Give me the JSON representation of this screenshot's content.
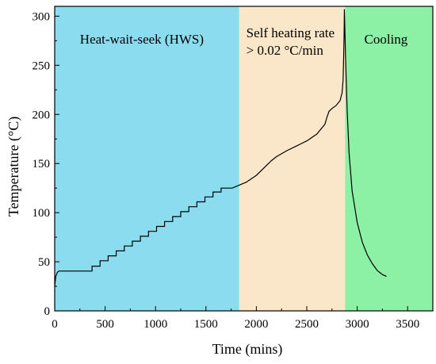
{
  "chart_data": {
    "type": "line",
    "xlabel": "Time (mins)",
    "ylabel": "Temperature (°C)",
    "xlim": [
      0,
      3750
    ],
    "ylim": [
      0,
      310
    ],
    "xticks": [
      "0",
      "500",
      "1000",
      "1500",
      "2000",
      "2500",
      "3000",
      "3500"
    ],
    "xtick_values": [
      0,
      500,
      1000,
      1500,
      2000,
      2500,
      3000,
      3500
    ],
    "yticks": [
      "0",
      "50",
      "100",
      "150",
      "200",
      "250",
      "300"
    ],
    "ytick_values": [
      0,
      50,
      100,
      150,
      200,
      250,
      300
    ],
    "grid": false,
    "regions": [
      {
        "label": "Heat-wait-seek (HWS)",
        "label_line2": "",
        "x_start": 0,
        "x_end": 1830,
        "color": "#8cdcf0"
      },
      {
        "label": "Self heating rate",
        "label_line2": "> 0.02 °C/min",
        "x_start": 1830,
        "x_end": 2880,
        "color": "#fae6c8"
      },
      {
        "label": "Cooling",
        "label_line2": "",
        "x_start": 2880,
        "x_end": 3750,
        "color": "#8cf0a5"
      }
    ],
    "series": [
      {
        "color": "#000000",
        "step_segments": [
          {
            "x_start": 40,
            "x_end": 370,
            "y": 40.5
          },
          {
            "x_start": 370,
            "x_end": 450,
            "y": 45.5
          },
          {
            "x_start": 450,
            "x_end": 530,
            "y": 51
          },
          {
            "x_start": 530,
            "x_end": 610,
            "y": 56
          },
          {
            "x_start": 610,
            "x_end": 690,
            "y": 61
          },
          {
            "x_start": 690,
            "x_end": 770,
            "y": 66
          },
          {
            "x_start": 770,
            "x_end": 850,
            "y": 71
          },
          {
            "x_start": 850,
            "x_end": 930,
            "y": 76
          },
          {
            "x_start": 930,
            "x_end": 1010,
            "y": 81
          },
          {
            "x_start": 1010,
            "x_end": 1090,
            "y": 86
          },
          {
            "x_start": 1090,
            "x_end": 1170,
            "y": 91
          },
          {
            "x_start": 1170,
            "x_end": 1250,
            "y": 96
          },
          {
            "x_start": 1250,
            "x_end": 1330,
            "y": 101
          },
          {
            "x_start": 1330,
            "x_end": 1410,
            "y": 106
          },
          {
            "x_start": 1410,
            "x_end": 1490,
            "y": 111
          },
          {
            "x_start": 1490,
            "x_end": 1570,
            "y": 116
          },
          {
            "x_start": 1570,
            "x_end": 1650,
            "y": 121
          },
          {
            "x_start": 1650,
            "x_end": 1760,
            "y": 125
          }
        ],
        "points": [
          [
            0,
            25
          ],
          [
            10,
            35
          ],
          [
            25,
            39
          ],
          [
            40,
            40.5
          ],
          [
            1760,
            125
          ],
          [
            1830,
            128
          ],
          [
            1900,
            131
          ],
          [
            2000,
            138
          ],
          [
            2100,
            148
          ],
          [
            2150,
            153
          ],
          [
            2200,
            157
          ],
          [
            2300,
            163
          ],
          [
            2400,
            168
          ],
          [
            2500,
            173
          ],
          [
            2600,
            180
          ],
          [
            2680,
            190
          ],
          [
            2700,
            197
          ],
          [
            2720,
            203
          ],
          [
            2750,
            206
          ],
          [
            2790,
            209
          ],
          [
            2830,
            214
          ],
          [
            2850,
            222
          ],
          [
            2860,
            235
          ],
          [
            2865,
            255
          ],
          [
            2870,
            282
          ],
          [
            2873,
            307
          ],
          [
            2878,
            285
          ],
          [
            2885,
            255
          ],
          [
            2900,
            205
          ],
          [
            2920,
            160
          ],
          [
            2950,
            122
          ],
          [
            3000,
            90
          ],
          [
            3050,
            70
          ],
          [
            3100,
            57
          ],
          [
            3150,
            48
          ],
          [
            3200,
            41
          ],
          [
            3250,
            37
          ],
          [
            3290,
            35
          ]
        ]
      }
    ]
  }
}
